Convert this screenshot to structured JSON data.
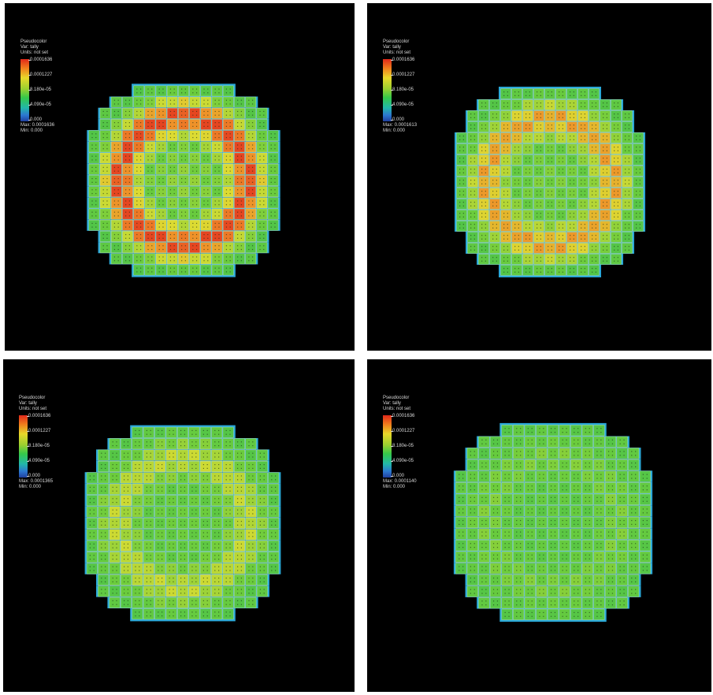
{
  "panels": [
    {
      "id": "p0",
      "legend": {
        "plot_type": "Pseudocolor",
        "var_line": "Var: tally",
        "units_line": "Units: not set",
        "ticks": [
          "0.0001636",
          "0.0001227",
          "8.180e-05",
          "4.090e-05",
          "0.000"
        ],
        "max_line": "Max: 0.0001636",
        "min_line": "Min: 0.000"
      },
      "intensity": 1.0
    },
    {
      "id": "p1",
      "legend": {
        "plot_type": "Pseudocolor",
        "var_line": "Var: tally",
        "units_line": "Units: not set",
        "ticks": [
          "0.0001636",
          "0.0001227",
          "8.180e-05",
          "4.090e-05",
          "0.000"
        ],
        "max_line": "Max: 0.0001613",
        "min_line": "Min: 0.000"
      },
      "intensity": 0.75
    },
    {
      "id": "p2",
      "legend": {
        "plot_type": "Pseudocolor",
        "var_line": "Var: tally",
        "units_line": "Units: not set",
        "ticks": [
          "0.0001636",
          "0.0001227",
          "8.180e-05",
          "4.090e-05",
          "0.000"
        ],
        "max_line": "Max: 0.0001365",
        "min_line": "Min: 0.000"
      },
      "intensity": 0.45
    },
    {
      "id": "p3",
      "legend": {
        "plot_type": "Pseudocolor",
        "var_line": "Var: tally",
        "units_line": "Units: not set",
        "ticks": [
          "0.0001636",
          "0.0001227",
          "8.180e-05",
          "4.090e-05",
          "0.000"
        ],
        "max_line": "Max: 0.0001140",
        "min_line": "Min: 0.000"
      },
      "intensity": 0.2
    }
  ]
}
